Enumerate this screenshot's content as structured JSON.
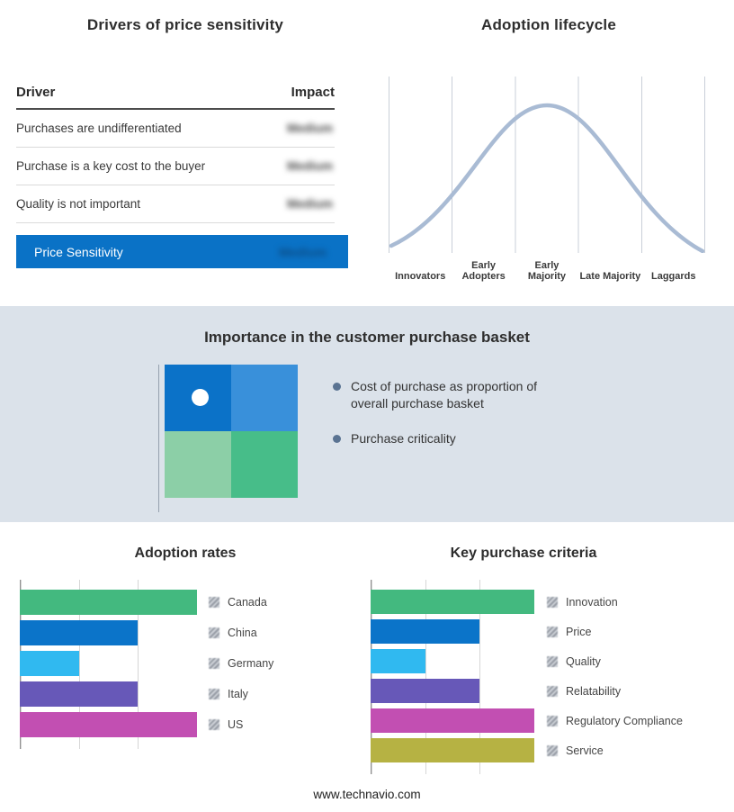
{
  "page": {
    "footer_url": "www.technavio.com",
    "band_bg": "#dbe2ea",
    "accent_color": "#0a72c6"
  },
  "drivers_table": {
    "title": "Drivers of price sensitivity",
    "columns": {
      "driver": "Driver",
      "impact": "Impact"
    },
    "rows": [
      {
        "driver": "Purchases are undifferentiated",
        "impact": "Medium"
      },
      {
        "driver": "Purchase is a key cost to the buyer",
        "impact": "Medium"
      },
      {
        "driver": "Quality is not important",
        "impact": "Medium"
      }
    ],
    "summary": {
      "label": "Price Sensitivity",
      "impact": "Medium",
      "bg": "#0a72c6"
    }
  },
  "basket": {
    "title": "Importance in the customer purchase basket",
    "bullets": [
      "Cost of purchase as proportion of overall purchase basket",
      "Purchase criticality"
    ],
    "quadrant_colors": [
      "#0b72c8",
      "#3990da",
      "#8ccfa7",
      "#47bd89"
    ]
  },
  "chart_data": [
    {
      "id": "adoption-lifecycle",
      "type": "line",
      "title": "Adoption lifecycle",
      "categories": [
        "Innovators",
        "Early Adopters",
        "Early Majority",
        "Late Majority",
        "Laggards"
      ],
      "shape": "bell curve rising from Innovators, peaking over Early Majority, falling to Laggards",
      "curve_color": "#a9bbd4",
      "grid": true,
      "legend": false
    },
    {
      "id": "adoption-rates",
      "type": "bar",
      "orientation": "horizontal",
      "title": "Adoption rates",
      "categories": [
        "Canada",
        "China",
        "Germany",
        "Italy",
        "US"
      ],
      "values": [
        3,
        2,
        1,
        2,
        3
      ],
      "colors": [
        "#43b97f",
        "#0b74c9",
        "#30b9f0",
        "#6758b8",
        "#c24fb2"
      ],
      "xlim": [
        0,
        3
      ],
      "grid": true,
      "legend_position": "right"
    },
    {
      "id": "key-purchase-criteria",
      "type": "bar",
      "orientation": "horizontal",
      "title": "Key purchase criteria",
      "categories": [
        "Innovation",
        "Price",
        "Quality",
        "Relatability",
        "Regulatory Compliance",
        "Service"
      ],
      "values": [
        3,
        2,
        1,
        2,
        3,
        3
      ],
      "colors": [
        "#43b97f",
        "#0b74c9",
        "#30b9f0",
        "#6758b8",
        "#c24fb2",
        "#b6b243"
      ],
      "xlim": [
        0,
        3
      ],
      "grid": true,
      "legend_position": "right"
    }
  ]
}
